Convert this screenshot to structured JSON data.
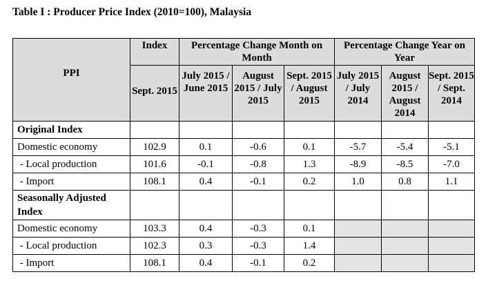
{
  "title": "Table I : Producer Price Index (2010=100), Malaysia",
  "header": {
    "ppi": "PPI",
    "index": "Index",
    "mom": "Percentage Change Month on Month",
    "yoy": "Percentage Change Year on Year",
    "sub": [
      "Sept. 2015",
      "July 2015 / June 2015",
      "August 2015 / July 2015",
      "Sept. 2015 / August 2015",
      "July 2015 / July 2014",
      "August 2015 / August 2014",
      "Sept. 2015 / Sept. 2014"
    ]
  },
  "sections": [
    {
      "label": "Original Index",
      "rows": [
        {
          "label": "Domestic economy",
          "values": [
            "102.9",
            "0.1",
            "-0.6",
            "0.1",
            "-5.7",
            "-5.4",
            "-5.1"
          ]
        },
        {
          "label": " - Local production",
          "values": [
            "101.6",
            "-0.1",
            "-0.8",
            "1.3",
            "-8.9",
            "-8.5",
            "-7.0"
          ]
        },
        {
          "label": " - Import",
          "values": [
            "108.1",
            "0.4",
            "-0.1",
            "0.2",
            "1.0",
            "0.8",
            "1.1"
          ]
        }
      ]
    },
    {
      "label": "Seasonally Adjusted Index",
      "rows": [
        {
          "label": "Domestic economy",
          "values": [
            "103.3",
            "0.4",
            "-0.3",
            "0.1",
            "",
            "",
            ""
          ]
        },
        {
          "label": " - Local production",
          "values": [
            "102.3",
            "0.3",
            "-0.3",
            "1.4",
            "",
            "",
            ""
          ]
        },
        {
          "label": " - Import",
          "values": [
            "108.1",
            "0.4",
            "-0.1",
            "0.2",
            "",
            "",
            ""
          ]
        }
      ]
    }
  ]
}
